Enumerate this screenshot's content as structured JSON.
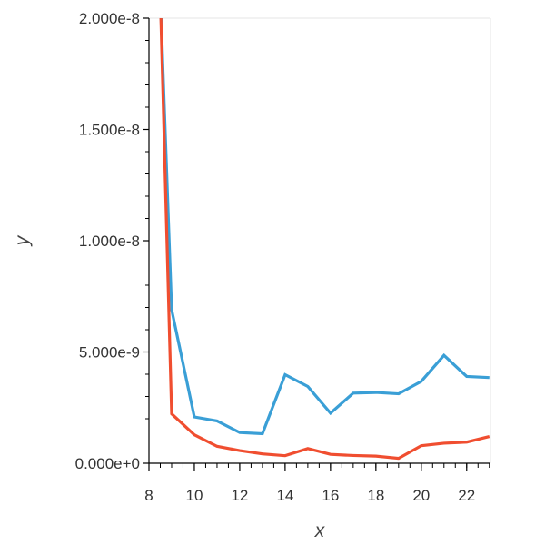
{
  "chart_data": {
    "type": "line",
    "xlabel": "x",
    "ylabel": "y",
    "xlim": [
      8,
      23.05
    ],
    "ylim": [
      0,
      2e-08
    ],
    "x_ticks": [
      8,
      10,
      12,
      14,
      16,
      18,
      20,
      22
    ],
    "y_ticks": [
      {
        "value": 0,
        "label": "0.000e+0"
      },
      {
        "value": 5e-09,
        "label": "5.000e-9"
      },
      {
        "value": 1e-08,
        "label": "1.000e-8"
      },
      {
        "value": 1.5e-08,
        "label": "1.500e-8"
      },
      {
        "value": 2e-08,
        "label": "2.000e-8"
      }
    ],
    "grid": false,
    "series": [
      {
        "color": "#3a9fd6",
        "x": [
          8.5,
          9,
          10,
          11,
          12,
          13,
          14,
          15,
          16,
          17,
          18,
          19,
          20,
          21,
          22,
          23
        ],
        "y": [
          2.1e-08,
          6.9e-09,
          2.08e-09,
          1.9e-09,
          1.38e-09,
          1.33e-09,
          3.98e-09,
          3.45e-09,
          2.25e-09,
          3.15e-09,
          3.18e-09,
          3.12e-09,
          3.68e-09,
          4.85e-09,
          3.9e-09,
          3.85e-09
        ]
      },
      {
        "color": "#f04e30",
        "x": [
          8.5,
          9,
          10,
          11,
          12,
          13,
          14,
          15,
          16,
          17,
          18,
          19,
          20,
          21,
          22,
          23
        ],
        "y": [
          2.1e-08,
          2.22e-09,
          1.28e-09,
          7.6e-10,
          5.7e-10,
          4.2e-10,
          3.4e-10,
          6.6e-10,
          4e-10,
          3.5e-10,
          3.2e-10,
          2.2e-10,
          7.9e-10,
          9e-10,
          9.5e-10,
          1.2e-09
        ]
      }
    ]
  }
}
